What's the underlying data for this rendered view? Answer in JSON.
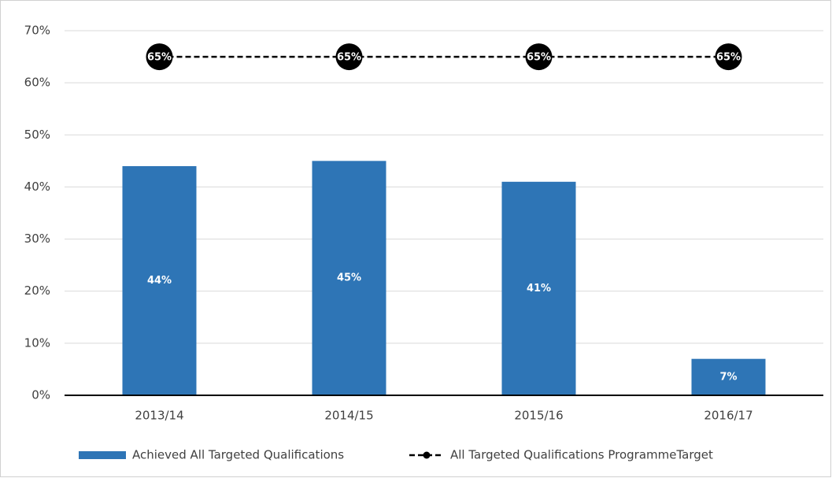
{
  "chart_data": {
    "type": "bar",
    "categories": [
      "2013/14",
      "2014/15",
      "2015/16",
      "2016/17"
    ],
    "series": [
      {
        "name": "Achieved All Targeted Qualifications",
        "type": "bar",
        "color": "#2e75b6",
        "values": [
          44,
          45,
          41,
          7
        ],
        "value_labels": [
          "44%",
          "45%",
          "41%",
          "7%"
        ]
      },
      {
        "name": "All Targeted Qualifications  ProgrammeTarget",
        "type": "line",
        "color": "#000000",
        "values": [
          65,
          65,
          65,
          65
        ],
        "value_labels": [
          "65%",
          "65%",
          "65%",
          "65%"
        ]
      }
    ],
    "ylim": [
      0,
      70
    ],
    "yticks": [
      {
        "value": 0,
        "label": "0%"
      },
      {
        "value": 10,
        "label": "10%"
      },
      {
        "value": 20,
        "label": "20%"
      },
      {
        "value": 30,
        "label": "30%"
      },
      {
        "value": 40,
        "label": "40%"
      },
      {
        "value": 50,
        "label": "50%"
      },
      {
        "value": 60,
        "label": "60%"
      },
      {
        "value": 70,
        "label": "70%"
      }
    ],
    "grid": true,
    "legend": "bottom"
  }
}
